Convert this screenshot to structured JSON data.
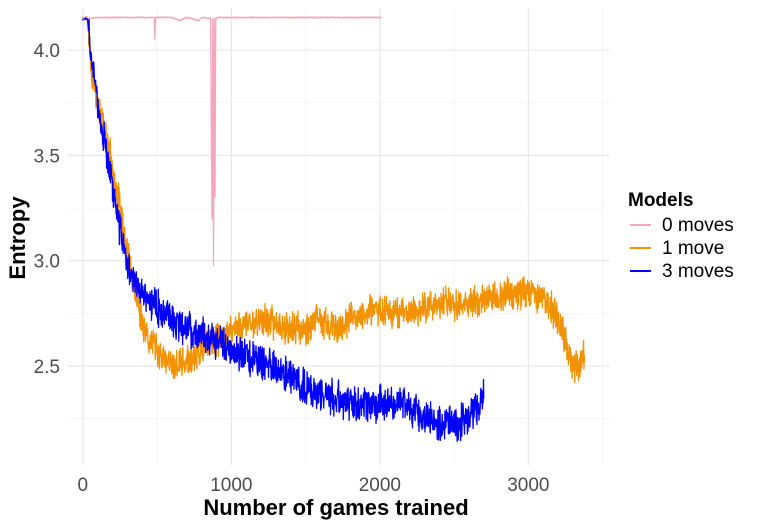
{
  "chart_data": {
    "type": "line",
    "xlabel": "Number of games trained",
    "ylabel": "Entropy",
    "xlim": [
      -100,
      3550
    ],
    "ylim": [
      2.03,
      4.2
    ],
    "x_ticks": [
      0,
      1000,
      2000,
      3000
    ],
    "x_tick_labels": [
      "0",
      "1000",
      "2000",
      "3000"
    ],
    "y_ticks": [
      2.5,
      3.0,
      3.5,
      4.0
    ],
    "y_tick_labels": [
      "2.5",
      "3.0",
      "3.5",
      "4.0"
    ],
    "grid": true,
    "legend": {
      "title": "Models",
      "position": "right"
    },
    "series": [
      {
        "name": "0 moves",
        "color": "#f4a6bd",
        "x_end": 2010,
        "points": [
          [
            0,
            4.15
          ],
          [
            20,
            4.16
          ],
          [
            40,
            4.15
          ],
          [
            100,
            4.155
          ],
          [
            300,
            4.155
          ],
          [
            480,
            4.155
          ],
          [
            485,
            4.05
          ],
          [
            490,
            4.155
          ],
          [
            600,
            4.155
          ],
          [
            650,
            4.14
          ],
          [
            700,
            4.155
          ],
          [
            780,
            4.14
          ],
          [
            800,
            4.155
          ],
          [
            860,
            4.15
          ],
          [
            870,
            3.2
          ],
          [
            875,
            4.15
          ],
          [
            880,
            2.98
          ],
          [
            885,
            4.15
          ],
          [
            890,
            3.3
          ],
          [
            895,
            4.15
          ],
          [
            910,
            4.155
          ],
          [
            1000,
            4.155
          ],
          [
            1500,
            4.155
          ],
          [
            2010,
            4.155
          ]
        ],
        "noise": 0.002,
        "seed": 11
      },
      {
        "name": "1 move",
        "color": "#f39200",
        "x_end": 3380,
        "points": [
          [
            0,
            4.15
          ],
          [
            30,
            4.15
          ],
          [
            60,
            3.9
          ],
          [
            100,
            3.75
          ],
          [
            150,
            3.6
          ],
          [
            200,
            3.45
          ],
          [
            250,
            3.25
          ],
          [
            300,
            3.05
          ],
          [
            350,
            2.85
          ],
          [
            400,
            2.72
          ],
          [
            450,
            2.62
          ],
          [
            500,
            2.58
          ],
          [
            550,
            2.52
          ],
          [
            600,
            2.5
          ],
          [
            700,
            2.52
          ],
          [
            800,
            2.57
          ],
          [
            900,
            2.62
          ],
          [
            1000,
            2.67
          ],
          [
            1100,
            2.7
          ],
          [
            1200,
            2.72
          ],
          [
            1300,
            2.7
          ],
          [
            1400,
            2.68
          ],
          [
            1500,
            2.68
          ],
          [
            1600,
            2.72
          ],
          [
            1700,
            2.67
          ],
          [
            1800,
            2.72
          ],
          [
            1900,
            2.75
          ],
          [
            2000,
            2.77
          ],
          [
            2100,
            2.76
          ],
          [
            2200,
            2.75
          ],
          [
            2300,
            2.78
          ],
          [
            2400,
            2.8
          ],
          [
            2500,
            2.8
          ],
          [
            2600,
            2.8
          ],
          [
            2700,
            2.82
          ],
          [
            2800,
            2.83
          ],
          [
            2900,
            2.85
          ],
          [
            3000,
            2.86
          ],
          [
            3100,
            2.82
          ],
          [
            3150,
            2.78
          ],
          [
            3200,
            2.72
          ],
          [
            3250,
            2.62
          ],
          [
            3300,
            2.5
          ],
          [
            3340,
            2.5
          ],
          [
            3380,
            2.55
          ]
        ],
        "noise": 0.06,
        "seed": 23
      },
      {
        "name": "3 moves",
        "color": "#0000ff",
        "x_end": 2700,
        "points": [
          [
            0,
            4.15
          ],
          [
            30,
            4.15
          ],
          [
            60,
            3.95
          ],
          [
            100,
            3.75
          ],
          [
            150,
            3.55
          ],
          [
            200,
            3.35
          ],
          [
            250,
            3.15
          ],
          [
            300,
            2.98
          ],
          [
            350,
            2.9
          ],
          [
            400,
            2.85
          ],
          [
            450,
            2.82
          ],
          [
            500,
            2.78
          ],
          [
            600,
            2.72
          ],
          [
            700,
            2.68
          ],
          [
            800,
            2.65
          ],
          [
            900,
            2.62
          ],
          [
            1000,
            2.58
          ],
          [
            1100,
            2.55
          ],
          [
            1200,
            2.52
          ],
          [
            1300,
            2.48
          ],
          [
            1400,
            2.44
          ],
          [
            1500,
            2.4
          ],
          [
            1600,
            2.37
          ],
          [
            1700,
            2.35
          ],
          [
            1800,
            2.33
          ],
          [
            1900,
            2.32
          ],
          [
            2000,
            2.32
          ],
          [
            2100,
            2.33
          ],
          [
            2200,
            2.3
          ],
          [
            2300,
            2.25
          ],
          [
            2400,
            2.22
          ],
          [
            2500,
            2.22
          ],
          [
            2600,
            2.26
          ],
          [
            2650,
            2.3
          ],
          [
            2700,
            2.38
          ]
        ],
        "noise": 0.065,
        "seed": 47
      }
    ]
  }
}
